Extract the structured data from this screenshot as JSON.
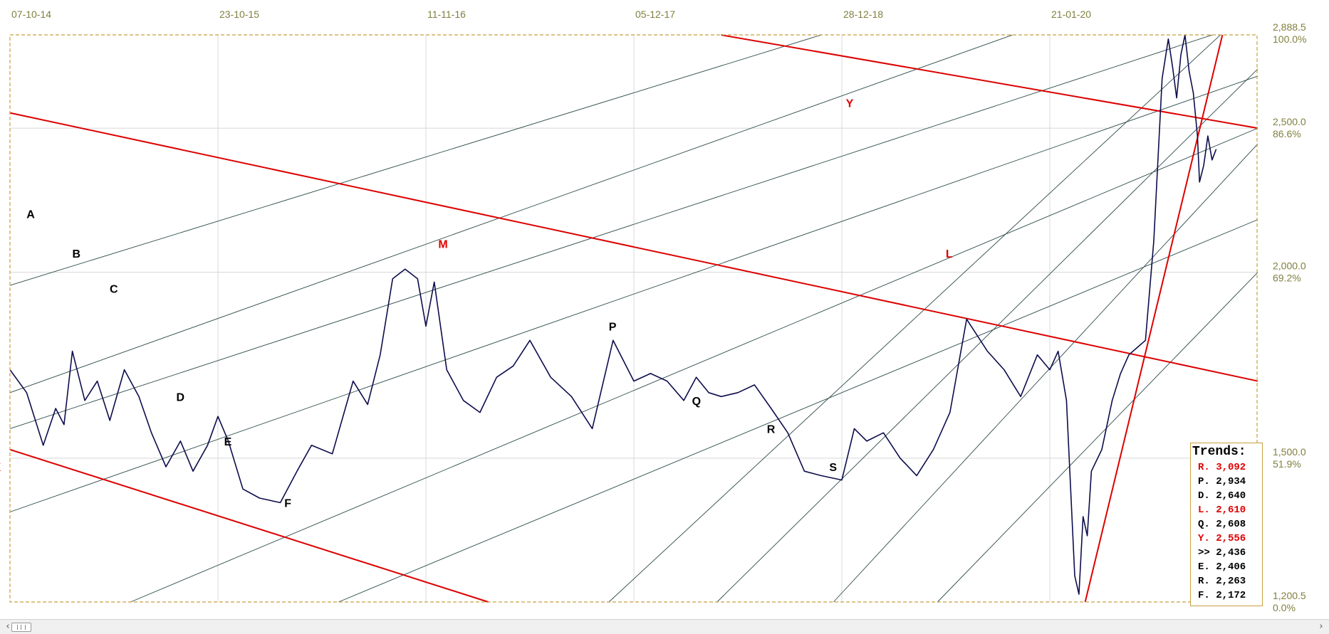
{
  "chart_data": {
    "type": "line",
    "title": "",
    "xlabel": "",
    "ylabel": "",
    "x_tick_labels": [
      "07-10-14",
      "23-10-15",
      "11-11-16",
      "05-12-17",
      "28-12-18",
      "21-01-20"
    ],
    "y_axis": {
      "scale": "log",
      "ylim": [
        1200.5,
        2888.5
      ],
      "ticks": [
        {
          "value": 2888.5,
          "label": "2,888.5",
          "pct": "100.0%"
        },
        {
          "value": 2500,
          "label": "2,500.0",
          "pct": "86.6%"
        },
        {
          "value": 2000,
          "label": "2,000.0",
          "pct": "69.2%"
        },
        {
          "value": 1500,
          "label": "1,500.0",
          "pct": "51.9%"
        },
        {
          "value": 1200.5,
          "label": "1,200.5",
          "pct": "0.0%"
        }
      ]
    },
    "grid": true,
    "series": [
      {
        "x_period_index": [
          0,
          0.08,
          0.16,
          0.22,
          0.26,
          0.3,
          0.36,
          0.42,
          0.48,
          0.55,
          0.62,
          0.68,
          0.75,
          0.82,
          0.88,
          0.95,
          1.0,
          1.05,
          1.12,
          1.2,
          1.3,
          1.38,
          1.45,
          1.55,
          1.65,
          1.72,
          1.78,
          1.84,
          1.9,
          1.96,
          2.0,
          2.04,
          2.1,
          2.18,
          2.26,
          2.34,
          2.42,
          2.5,
          2.6,
          2.7,
          2.8,
          2.9,
          3.0,
          3.08,
          3.16,
          3.24,
          3.3,
          3.36,
          3.42,
          3.5,
          3.58,
          3.66,
          3.74,
          3.82,
          3.9,
          4.0,
          4.06,
          4.12,
          4.2,
          4.28,
          4.36,
          4.44,
          4.52,
          4.6,
          4.7,
          4.78,
          4.86,
          4.94,
          5.0,
          5.04,
          5.08,
          5.12,
          5.14,
          5.16,
          5.18,
          5.2,
          5.25,
          5.3,
          5.34,
          5.38,
          5.42,
          5.46,
          5.5,
          5.54,
          5.57,
          5.59,
          5.61,
          5.63,
          5.65,
          5.67,
          5.69,
          5.71,
          5.72,
          5.74,
          5.76,
          5.78,
          5.8
        ],
        "values": [
          1720,
          1660,
          1530,
          1620,
          1580,
          1770,
          1640,
          1690,
          1590,
          1720,
          1650,
          1560,
          1480,
          1540,
          1470,
          1530,
          1600,
          1540,
          1430,
          1410,
          1400,
          1470,
          1530,
          1510,
          1690,
          1630,
          1760,
          1980,
          2010,
          1980,
          1840,
          1970,
          1720,
          1640,
          1610,
          1700,
          1730,
          1800,
          1700,
          1650,
          1570,
          1800,
          1690,
          1710,
          1690,
          1640,
          1700,
          1660,
          1650,
          1660,
          1680,
          1620,
          1560,
          1470,
          1460,
          1450,
          1570,
          1540,
          1560,
          1500,
          1460,
          1520,
          1610,
          1860,
          1770,
          1720,
          1650,
          1760,
          1720,
          1770,
          1640,
          1250,
          1215,
          1370,
          1330,
          1470,
          1520,
          1640,
          1710,
          1760,
          1780,
          1800,
          2100,
          2700,
          2870,
          2750,
          2620,
          2800,
          2888,
          2730,
          2640,
          2470,
          2300,
          2360,
          2470,
          2380,
          2420
        ]
      }
    ],
    "trend_lines": [
      {
        "name": "A",
        "color": "#2e4a4a",
        "start": [
          0,
          1960
        ],
        "end": [
          3.9,
          2888
        ]
      },
      {
        "name": "B",
        "color": "#2e4a4a",
        "start": [
          0,
          1660
        ],
        "end": [
          4.82,
          2888
        ]
      },
      {
        "name": "C",
        "color": "#2e4a4a",
        "start": [
          0,
          1570
        ],
        "end": [
          5.78,
          2888
        ]
      },
      {
        "name": "D",
        "color": "#2e4a4a",
        "start": [
          0,
          1380
        ],
        "end": [
          6.0,
          2710
        ]
      },
      {
        "name": "E",
        "color": "#2e4a4a",
        "start": [
          0.58,
          1200.5
        ],
        "end": [
          6.0,
          2500
        ]
      },
      {
        "name": "F",
        "color": "#2e4a4a",
        "start": [
          1.58,
          1200.5
        ],
        "end": [
          6.0,
          2170
        ]
      },
      {
        "name": "P",
        "color": "#2e4a4a",
        "start": [
          2.88,
          1200.5
        ],
        "end": [
          5.82,
          2888
        ]
      },
      {
        "name": "Q",
        "color": "#2e4a4a",
        "start": [
          3.4,
          1200.5
        ],
        "end": [
          6.0,
          2740
        ]
      },
      {
        "name": "R",
        "color": "#2e4a4a",
        "start": [
          3.96,
          1200.5
        ],
        "end": [
          6.0,
          2440
        ]
      },
      {
        "name": "S",
        "color": "#2e4a4a",
        "start": [
          4.46,
          1200.5
        ],
        "end": [
          6.0,
          2000
        ]
      },
      {
        "name": "M",
        "color": "#dd0000",
        "start": [
          0,
          2560
        ],
        "end": [
          6.0,
          1690
        ]
      },
      {
        "name": "X",
        "color": "#dd0000",
        "start": [
          0,
          1520
        ],
        "end": [
          2.3,
          1200.5
        ]
      },
      {
        "name": "Y",
        "color": "#dd0000",
        "start": [
          3.42,
          2888
        ],
        "end": [
          6.0,
          2500
        ]
      },
      {
        "name": "L",
        "color": "#dd0000",
        "start": [
          5.17,
          1200.5
        ],
        "end": [
          5.83,
          2888
        ]
      }
    ],
    "line_labels": [
      {
        "text": "A",
        "color": "black",
        "at": [
          0.1,
          2190
        ]
      },
      {
        "text": "B",
        "color": "black",
        "at": [
          0.32,
          2060
        ]
      },
      {
        "text": "C",
        "color": "black",
        "at": [
          0.5,
          1950
        ]
      },
      {
        "text": "D",
        "color": "black",
        "at": [
          0.82,
          1650
        ]
      },
      {
        "text": "E",
        "color": "black",
        "at": [
          1.05,
          1540
        ]
      },
      {
        "text": "F",
        "color": "black",
        "at": [
          1.34,
          1400
        ]
      },
      {
        "text": "P",
        "color": "black",
        "at": [
          2.9,
          1840
        ]
      },
      {
        "text": "Q",
        "color": "black",
        "at": [
          3.3,
          1640
        ]
      },
      {
        "text": "R",
        "color": "black",
        "at": [
          3.66,
          1570
        ]
      },
      {
        "text": "S",
        "color": "black",
        "at": [
          3.96,
          1480
        ]
      },
      {
        "text": "M",
        "color": "red",
        "at": [
          2.08,
          2090
        ]
      },
      {
        "text": "X",
        "color": "red",
        "at": [
          -0.06,
          1480
        ]
      },
      {
        "text": "Y",
        "color": "red",
        "at": [
          4.04,
          2600
        ]
      },
      {
        "text": "L",
        "color": "red",
        "at": [
          4.52,
          2060
        ]
      }
    ]
  },
  "legend": {
    "title": "Trends:",
    "items": [
      {
        "text": "R. 3,092",
        "color": "#dd0000"
      },
      {
        "text": "P. 2,934",
        "color": "#000000"
      },
      {
        "text": "D. 2,640",
        "color": "#000000"
      },
      {
        "text": "L. 2,610",
        "color": "#dd0000"
      },
      {
        "text": "Q. 2,608",
        "color": "#000000"
      },
      {
        "text": "Y. 2,556",
        "color": "#dd0000"
      },
      {
        "text": ">> 2,436",
        "color": "#000000"
      },
      {
        "text": "E. 2,406",
        "color": "#000000"
      },
      {
        "text": "R. 2,263",
        "color": "#000000"
      },
      {
        "text": "F. 2,172",
        "color": "#000000"
      }
    ]
  },
  "colors": {
    "price_line": "#0d0d4d",
    "grid": "#d8d8d8",
    "frame": "#c8a040",
    "axis_text": "#808040"
  },
  "scrollbar": {
    "left_arrow": "‹",
    "right_arrow": "›"
  }
}
